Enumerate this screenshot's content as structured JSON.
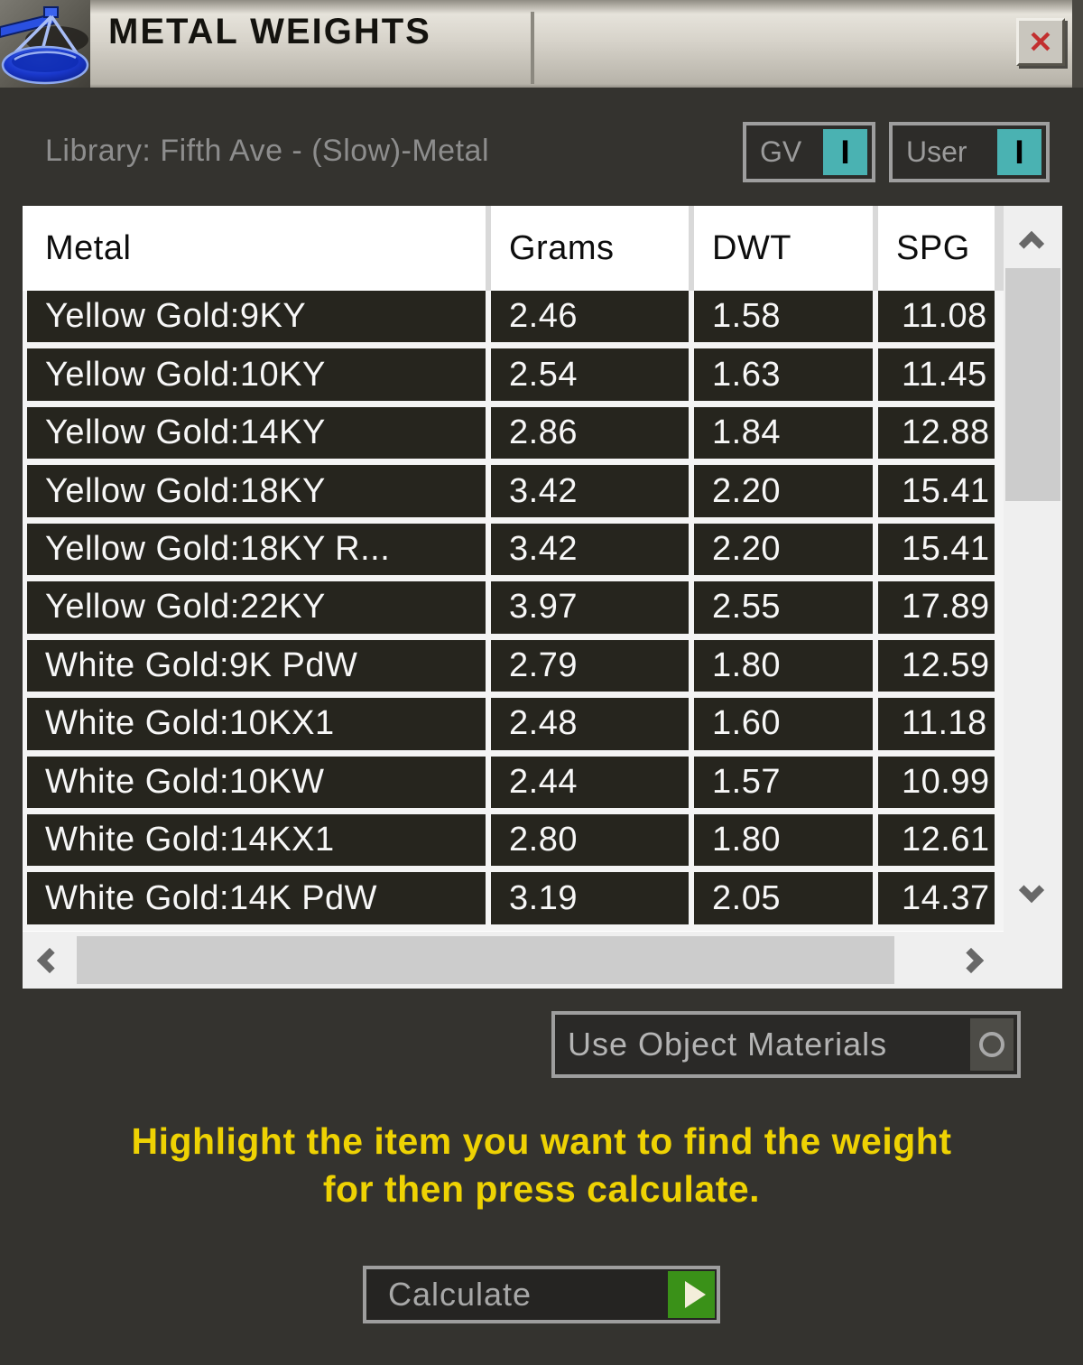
{
  "window": {
    "title": "METAL WEIGHTS",
    "close_glyph": "✕"
  },
  "library": {
    "label": "Library: Fifth Ave - (Slow)-Metal"
  },
  "toggles": {
    "gv": {
      "label": "GV",
      "indicator": "I",
      "state": "on"
    },
    "user": {
      "label": "User",
      "indicator": "I",
      "state": "on"
    }
  },
  "table": {
    "columns": [
      "Metal",
      "Grams",
      "DWT",
      "SPG"
    ],
    "rows": [
      {
        "metal": "Yellow Gold:9KY",
        "grams": "2.46",
        "dwt": "1.58",
        "spg": "11.08"
      },
      {
        "metal": "Yellow Gold:10KY",
        "grams": "2.54",
        "dwt": "1.63",
        "spg": "11.45"
      },
      {
        "metal": "Yellow Gold:14KY",
        "grams": "2.86",
        "dwt": "1.84",
        "spg": "12.88"
      },
      {
        "metal": "Yellow Gold:18KY",
        "grams": "3.42",
        "dwt": "2.20",
        "spg": "15.41"
      },
      {
        "metal": "Yellow Gold:18KY R...",
        "grams": "3.42",
        "dwt": "2.20",
        "spg": "15.41"
      },
      {
        "metal": "Yellow Gold:22KY",
        "grams": "3.97",
        "dwt": "2.55",
        "spg": "17.89"
      },
      {
        "metal": "White Gold:9K PdW",
        "grams": "2.79",
        "dwt": "1.80",
        "spg": "12.59"
      },
      {
        "metal": "White Gold:10KX1",
        "grams": "2.48",
        "dwt": "1.60",
        "spg": "11.18"
      },
      {
        "metal": "White Gold:10KW",
        "grams": "2.44",
        "dwt": "1.57",
        "spg": "10.99"
      },
      {
        "metal": "White Gold:14KX1",
        "grams": "2.80",
        "dwt": "1.80",
        "spg": "12.61"
      },
      {
        "metal": "White Gold:14K PdW",
        "grams": "3.19",
        "dwt": "2.05",
        "spg": "14.37"
      }
    ]
  },
  "controls": {
    "use_object_materials_label": "Use Object Materials",
    "calculate_label": "Calculate"
  },
  "instruction": {
    "line1": "Highlight the item you want to find the weight",
    "line2": "for then press calculate."
  },
  "icons": {
    "app_icon": "scale-balance",
    "calculate_icon": "play-arrow",
    "uom_icon": "radio-circle-off"
  },
  "colors": {
    "accent_teal": "#4ab2b2",
    "instruction_yellow": "#eed203",
    "go_green": "#3a9118",
    "close_red": "#c22f2f",
    "row_dark": "#26251e",
    "body_dark": "#34332f",
    "titlebar_light": "#d8d4cb"
  }
}
